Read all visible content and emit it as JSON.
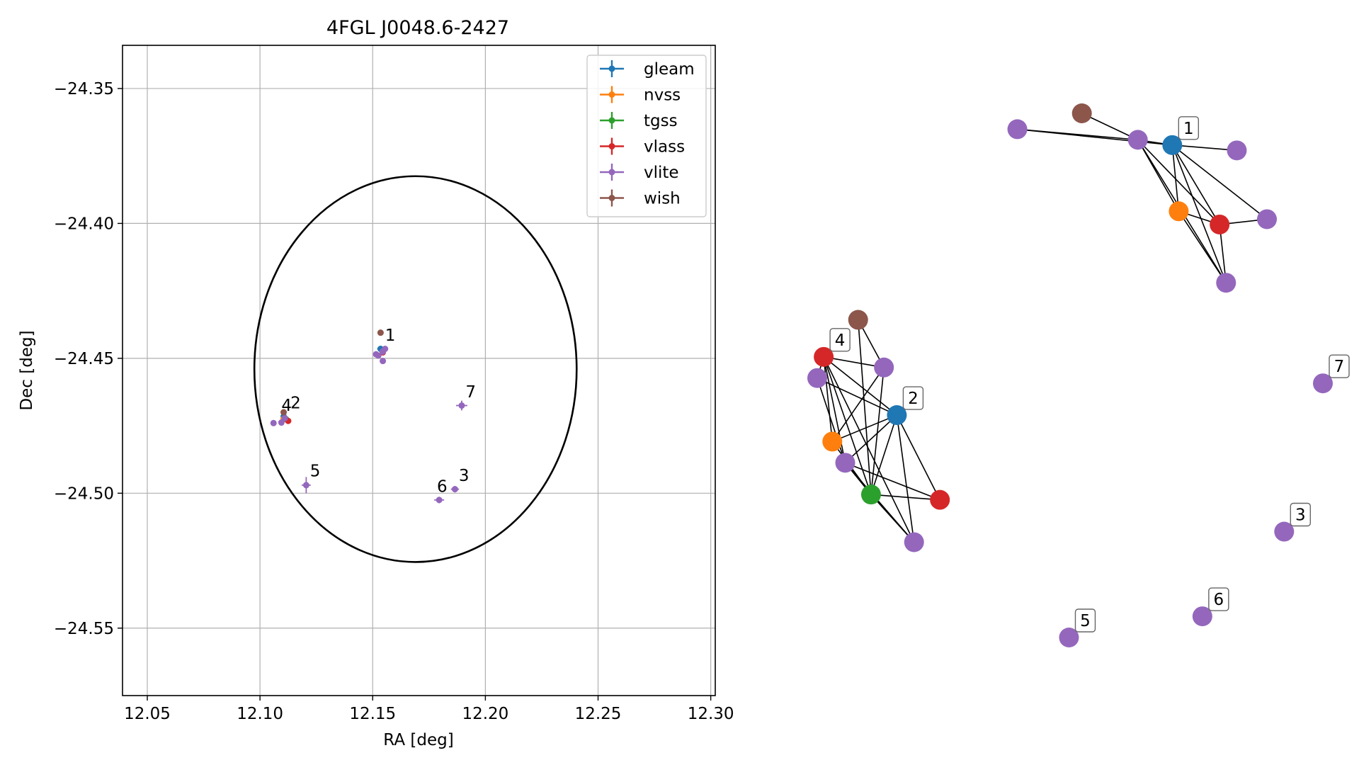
{
  "chart_data": [
    {
      "type": "scatter",
      "title": "4FGL J0048.6-2427",
      "xlabel": "RA [deg]",
      "ylabel": "Dec [deg]",
      "xlim": [
        12.039,
        12.302
      ],
      "ylim": [
        -24.575,
        -24.334
      ],
      "xticks": [
        12.05,
        12.1,
        12.15,
        12.2,
        12.25,
        12.3
      ],
      "xtick_labels": [
        "12.05",
        "12.10",
        "12.15",
        "12.20",
        "12.25",
        "12.30"
      ],
      "yticks": [
        -24.35,
        -24.4,
        -24.45,
        -24.5,
        -24.55
      ],
      "ytick_labels": [
        "−24.35",
        "−24.40",
        "−24.45",
        "−24.50",
        "−24.55"
      ],
      "grid": true,
      "legend_position": "top-right",
      "circle": {
        "ra": 12.169,
        "dec": -24.454,
        "radius_deg": 0.0715
      },
      "series": [
        {
          "name": "gleam",
          "color": "#1f77b4",
          "points": [
            {
              "x": 12.1535,
              "y": -24.4465,
              "xerr": 0.0015,
              "yerr": 0.001
            },
            {
              "x": 12.1105,
              "y": -24.4715,
              "xerr": 0.0008,
              "yerr": 0.0008
            }
          ]
        },
        {
          "name": "nvss",
          "color": "#ff7f0e",
          "points": [
            {
              "x": 12.1545,
              "y": -24.4475,
              "xerr": 0.0006,
              "yerr": 0.0006
            },
            {
              "x": 12.1105,
              "y": -24.4725,
              "xerr": 0.0006,
              "yerr": 0.0006
            }
          ]
        },
        {
          "name": "tgss",
          "color": "#2ca02c",
          "points": [
            {
              "x": 12.1115,
              "y": -24.4725,
              "xerr": 0.0006,
              "yerr": 0.0006
            }
          ]
        },
        {
          "name": "vlass",
          "color": "#d62728",
          "points": [
            {
              "x": 12.1545,
              "y": -24.4478,
              "xerr": 0.0004,
              "yerr": 0.0004
            },
            {
              "x": 12.1125,
              "y": -24.4732,
              "xerr": 0.0004,
              "yerr": 0.0004
            }
          ]
        },
        {
          "name": "vlite",
          "color": "#9467bd",
          "points": [
            {
              "x": 12.1515,
              "y": -24.4485,
              "xerr": 0.0012,
              "yerr": 0.001
            },
            {
              "x": 12.1545,
              "y": -24.4475,
              "xerr": 0.001,
              "yerr": 0.001
            },
            {
              "x": 12.1555,
              "y": -24.4465,
              "xerr": 0.001,
              "yerr": 0.001
            },
            {
              "x": 12.1545,
              "y": -24.451,
              "xerr": 0.0008,
              "yerr": 0.0008
            },
            {
              "x": 12.1525,
              "y": -24.449,
              "xerr": 0.0008,
              "yerr": 0.0008
            },
            {
              "x": 12.106,
              "y": -24.474,
              "xerr": 0.0008,
              "yerr": 0.0008
            },
            {
              "x": 12.1095,
              "y": -24.4738,
              "xerr": 0.0008,
              "yerr": 0.0008
            },
            {
              "x": 12.111,
              "y": -24.4722,
              "xerr": 0.001,
              "yerr": 0.001
            },
            {
              "x": 12.1895,
              "y": -24.4675,
              "xerr": 0.0025,
              "yerr": 0.0018
            },
            {
              "x": 12.1865,
              "y": -24.4985,
              "xerr": 0.0018,
              "yerr": 0.0012
            },
            {
              "x": 12.1795,
              "y": -24.5025,
              "xerr": 0.0022,
              "yerr": 0.0012
            },
            {
              "x": 12.1205,
              "y": -24.497,
              "xerr": 0.002,
              "yerr": 0.003
            }
          ]
        },
        {
          "name": "wish",
          "color": "#8c564b",
          "points": [
            {
              "x": 12.1535,
              "y": -24.4405,
              "xerr": 0.0006,
              "yerr": 0.0006
            },
            {
              "x": 12.1105,
              "y": -24.47,
              "xerr": 0.0006,
              "yerr": 0.0006
            }
          ]
        }
      ],
      "annotations": [
        {
          "text": "1",
          "x": 12.1555,
          "y": -24.4435
        },
        {
          "text": "2",
          "x": 12.1135,
          "y": -24.4685
        },
        {
          "text": "3",
          "x": 12.1882,
          "y": -24.4955
        },
        {
          "text": "4",
          "x": 12.1095,
          "y": -24.4695
        },
        {
          "text": "5",
          "x": 12.1222,
          "y": -24.4938
        },
        {
          "text": "6",
          "x": 12.1785,
          "y": -24.4995
        },
        {
          "text": "7",
          "x": 12.1912,
          "y": -24.4645
        }
      ]
    },
    {
      "type": "network",
      "nodes": [
        {
          "id": "a0",
          "color": "#9467bd",
          "x": -0.62,
          "y": 0.88
        },
        {
          "id": "a1",
          "color": "#8c564b",
          "x": -0.47,
          "y": 0.91
        },
        {
          "id": "a2",
          "color": "#9467bd",
          "x": -0.34,
          "y": 0.86
        },
        {
          "id": "a3",
          "color": "#1f77b4",
          "x": -0.26,
          "y": 0.85,
          "label": "1"
        },
        {
          "id": "a4",
          "color": "#9467bd",
          "x": -0.11,
          "y": 0.84
        },
        {
          "id": "a5",
          "color": "#ff7f0e",
          "x": -0.245,
          "y": 0.725
        },
        {
          "id": "a6",
          "color": "#d62728",
          "x": -0.15,
          "y": 0.7
        },
        {
          "id": "a7",
          "color": "#9467bd",
          "x": -0.04,
          "y": 0.71
        },
        {
          "id": "a8",
          "color": "#9467bd",
          "x": -0.135,
          "y": 0.59
        },
        {
          "id": "b0",
          "color": "#8c564b",
          "x": -0.99,
          "y": 0.52
        },
        {
          "id": "b1",
          "color": "#d62728",
          "x": -1.07,
          "y": 0.45,
          "label": "4"
        },
        {
          "id": "b2",
          "color": "#9467bd",
          "x": -1.085,
          "y": 0.41
        },
        {
          "id": "b3",
          "color": "#9467bd",
          "x": -0.93,
          "y": 0.43
        },
        {
          "id": "b4",
          "color": "#1f77b4",
          "x": -0.9,
          "y": 0.34,
          "label": "2"
        },
        {
          "id": "b5",
          "color": "#ff7f0e",
          "x": -1.05,
          "y": 0.29
        },
        {
          "id": "b6",
          "color": "#9467bd",
          "x": -1.02,
          "y": 0.25
        },
        {
          "id": "b7",
          "color": "#2ca02c",
          "x": -0.96,
          "y": 0.19
        },
        {
          "id": "b8",
          "color": "#d62728",
          "x": -0.8,
          "y": 0.18
        },
        {
          "id": "b9",
          "color": "#9467bd",
          "x": -0.86,
          "y": 0.1
        },
        {
          "id": "n7",
          "color": "#9467bd",
          "x": 0.09,
          "y": 0.4,
          "label": "7"
        },
        {
          "id": "n3",
          "color": "#9467bd",
          "x": 0.0,
          "y": 0.12,
          "label": "3"
        },
        {
          "id": "n6",
          "color": "#9467bd",
          "x": -0.19,
          "y": -0.04,
          "label": "6"
        },
        {
          "id": "n5",
          "color": "#9467bd",
          "x": -0.5,
          "y": -0.08,
          "label": "5"
        }
      ],
      "edges": [
        [
          "a0",
          "a3"
        ],
        [
          "a0",
          "a2"
        ],
        [
          "a1",
          "a2"
        ],
        [
          "a2",
          "a3"
        ],
        [
          "a2",
          "a5"
        ],
        [
          "a2",
          "a6"
        ],
        [
          "a2",
          "a8"
        ],
        [
          "a3",
          "a4"
        ],
        [
          "a3",
          "a5"
        ],
        [
          "a3",
          "a6"
        ],
        [
          "a3",
          "a7"
        ],
        [
          "a3",
          "a8"
        ],
        [
          "a5",
          "a6"
        ],
        [
          "a6",
          "a7"
        ],
        [
          "a5",
          "a8"
        ],
        [
          "a6",
          "a8"
        ],
        [
          "b0",
          "b3"
        ],
        [
          "b0",
          "b7"
        ],
        [
          "b1",
          "b2"
        ],
        [
          "b1",
          "b3"
        ],
        [
          "b1",
          "b4"
        ],
        [
          "b1",
          "b5"
        ],
        [
          "b1",
          "b6"
        ],
        [
          "b1",
          "b7"
        ],
        [
          "b1",
          "b9"
        ],
        [
          "b2",
          "b4"
        ],
        [
          "b2",
          "b6"
        ],
        [
          "b3",
          "b5"
        ],
        [
          "b3",
          "b7"
        ],
        [
          "b4",
          "b5"
        ],
        [
          "b4",
          "b6"
        ],
        [
          "b4",
          "b7"
        ],
        [
          "b4",
          "b8"
        ],
        [
          "b4",
          "b9"
        ],
        [
          "b5",
          "b7"
        ],
        [
          "b6",
          "b7"
        ],
        [
          "b6",
          "b8"
        ],
        [
          "b6",
          "b9"
        ],
        [
          "b7",
          "b8"
        ],
        [
          "b7",
          "b9"
        ]
      ]
    }
  ]
}
